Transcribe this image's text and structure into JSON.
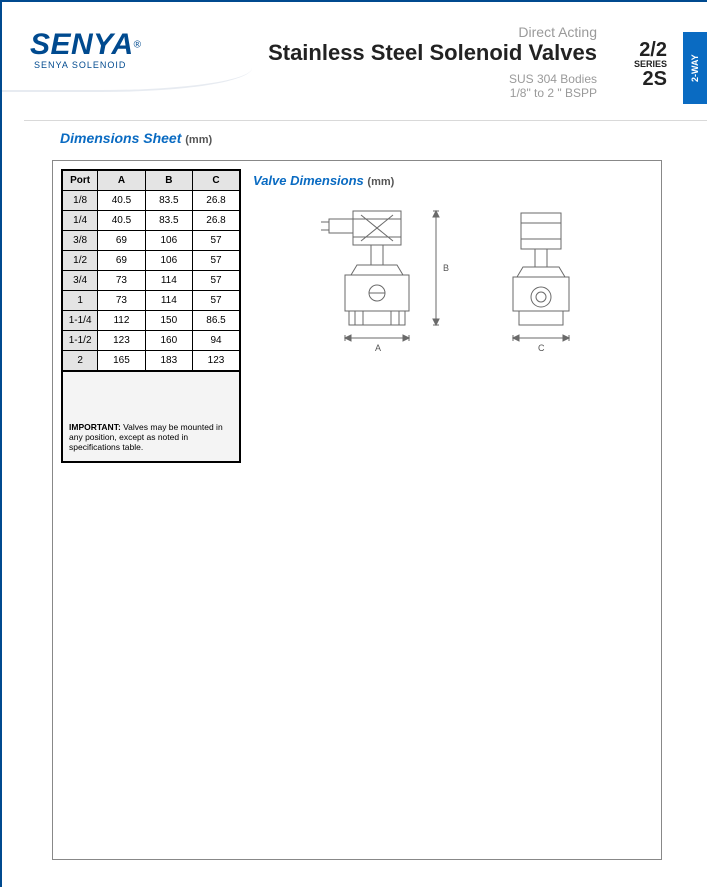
{
  "brand": {
    "name": "SENYA",
    "registered": "®",
    "subtitle": "SENYA SOLENOID"
  },
  "header": {
    "pretitle": "Direct Acting",
    "title": "Stainless Steel Solenoid Valves",
    "sub1": "SUS 304 Bodies",
    "sub2": "1/8\" to 2 \" BSPP"
  },
  "series": {
    "number": "2/2",
    "label": "SERIES",
    "code": "2S"
  },
  "side_tab": "2-WAY",
  "section": {
    "title": "Dimensions Sheet",
    "unit": "(mm)"
  },
  "valve_section": {
    "title": "Valve Dimensions",
    "unit": "(mm)"
  },
  "table": {
    "columns": [
      "Port",
      "A",
      "B",
      "C"
    ],
    "rows": [
      [
        "1/8",
        "40.5",
        "83.5",
        "26.8"
      ],
      [
        "1/4",
        "40.5",
        "83.5",
        "26.8"
      ],
      [
        "3/8",
        "69",
        "106",
        "57"
      ],
      [
        "1/2",
        "69",
        "106",
        "57"
      ],
      [
        "3/4",
        "73",
        "114",
        "57"
      ],
      [
        "1",
        "73",
        "114",
        "57"
      ],
      [
        "1-1/4",
        "112",
        "150",
        "86.5"
      ],
      [
        "1-1/2",
        "123",
        "160",
        "94"
      ],
      [
        "2",
        "165",
        "183",
        "123"
      ]
    ],
    "col_widths": [
      "36px",
      "48px",
      "48px",
      "48px"
    ],
    "header_bg": "#e4e4e4",
    "port_bg": "#e4e4e4"
  },
  "note": {
    "label": "IMPORTANT:",
    "text": " Valves may be mounted in any position, except as noted in specifications table."
  },
  "diagram": {
    "labels": {
      "A": "A",
      "B": "B",
      "C": "C"
    },
    "stroke": "#6a6a6a",
    "stroke_width": 1
  },
  "colors": {
    "brand_blue": "#004a8f",
    "accent_blue": "#0a6bc2",
    "grey_text": "#9a9a9a",
    "rule": "#d9d9d9"
  }
}
